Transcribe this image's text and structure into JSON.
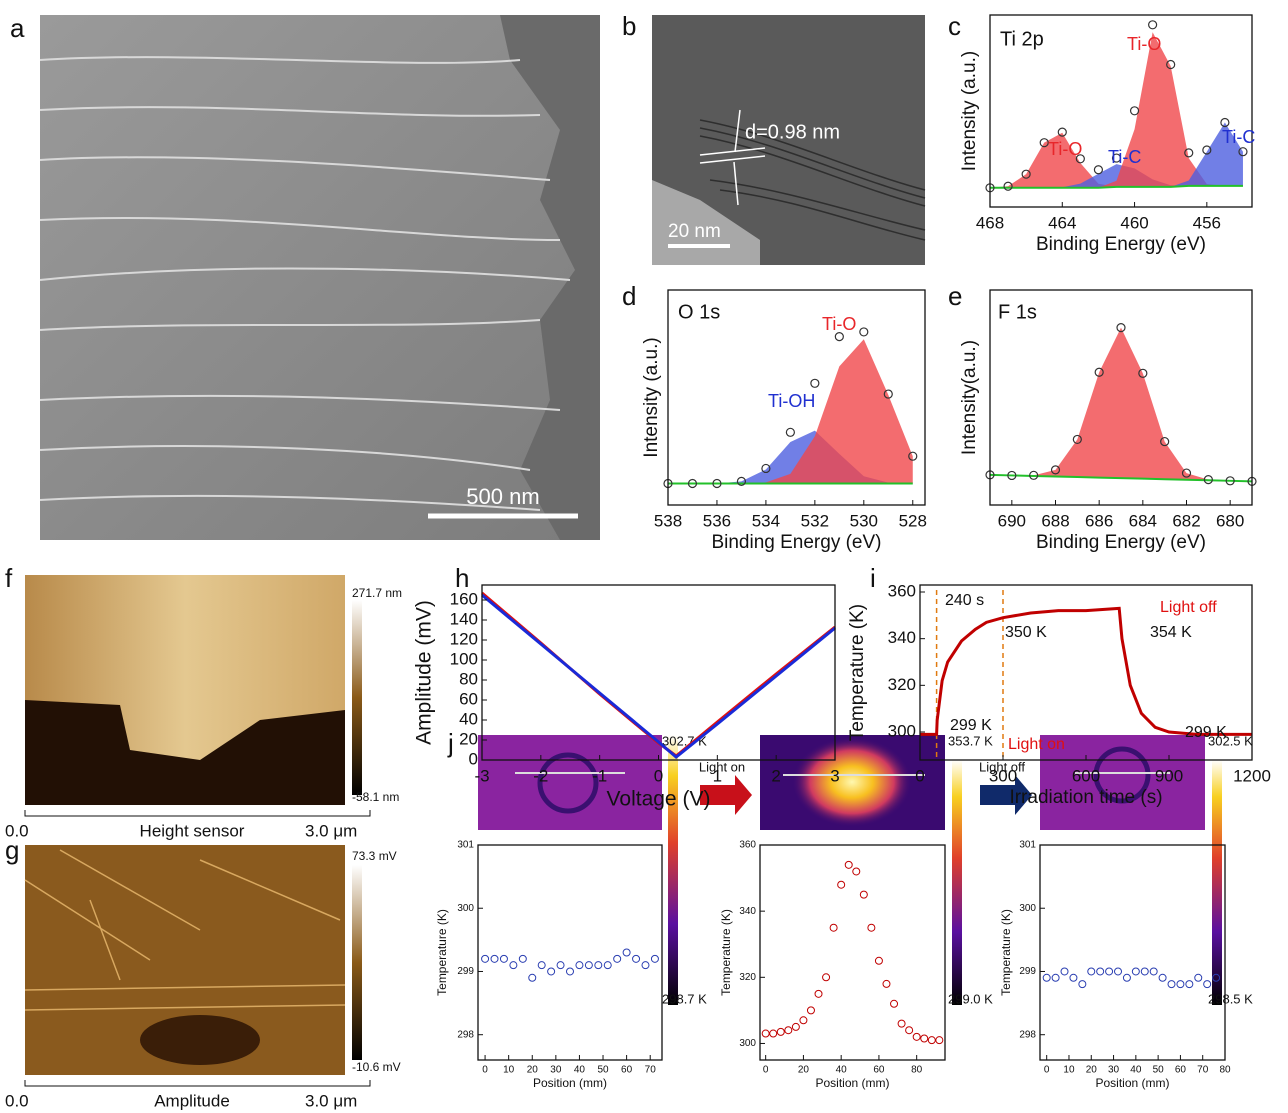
{
  "panel_labels": [
    "a",
    "b",
    "c",
    "d",
    "e",
    "f",
    "g",
    "h",
    "i",
    "j"
  ],
  "images": {
    "sem": {
      "scale_bar": "500 nm"
    },
    "tem": {
      "scale_bar": "20 nm",
      "spacing": "d=0.98 nm"
    },
    "afm_height": {
      "colorbar_max": "271.7 nm",
      "colorbar_min": "-58.1 nm",
      "axis_start": "0.0",
      "caption": "Height sensor",
      "axis_end": "3.0 μm"
    },
    "afm_amplitude": {
      "colorbar_max": "73.3 mV",
      "colorbar_min": "-10.6 mV",
      "axis_start": "0.0",
      "caption": "Amplitude",
      "axis_end": "3.0 μm"
    },
    "thermal": [
      {
        "colorbar_max": "302.7 K",
        "colorbar_min": "298.7 K"
      },
      {
        "colorbar_max": "353.7 K",
        "colorbar_min": "299.0 K"
      },
      {
        "colorbar_max": "302.5 K",
        "colorbar_min": "298.5 K"
      }
    ],
    "transitions": [
      "Light on",
      "Light off"
    ]
  },
  "chart_data": [
    {
      "type": "area",
      "title": "Ti 2p",
      "x_label": "Binding Energy (eV)",
      "y_label": "Intensity (a.u.)",
      "x": [
        468,
        467,
        466,
        465,
        464,
        463,
        462,
        461,
        460,
        459,
        458,
        457,
        456,
        455,
        454
      ],
      "values": [
        10,
        10.8,
        17.1,
        33.5,
        39,
        25.1,
        19.4,
        25.5,
        50.1,
        94.9,
        74.2,
        28.2,
        29.7,
        44,
        28.8
      ],
      "point_color": "#333333",
      "background": [
        10,
        10,
        10,
        10,
        10,
        10,
        10,
        10.5,
        10.5,
        10.5,
        10.5,
        11,
        11,
        11,
        11
      ],
      "background_color": "#22c02a",
      "peaks": [
        {
          "color": "#f0474b",
          "values": [
            10,
            10.8,
            17.1,
            33.5,
            38.7,
            22.9,
            12.1,
            10.5,
            10.5,
            10.5,
            10.5,
            11,
            11,
            11,
            11
          ]
        },
        {
          "color": "#4d5fe0",
          "values": [
            10,
            10,
            10,
            10,
            10.3,
            12.2,
            17.3,
            22.3,
            20.1,
            14.4,
            11.3,
            11,
            11,
            11,
            11
          ]
        },
        {
          "color": "#f0474b",
          "values": [
            10,
            10,
            10,
            10,
            10,
            10,
            10,
            13.7,
            40.5,
            91,
            73.4,
            25.4,
            11.9,
            11,
            11
          ]
        },
        {
          "color": "#4d5fe0",
          "values": [
            10,
            10,
            10,
            10,
            10,
            10,
            10,
            10.5,
            10.5,
            10.5,
            10.5,
            13.8,
            28.8,
            44,
            28.8
          ]
        }
      ],
      "annotations": [
        {
          "text": "Ti-O",
          "color": "#e8262a"
        },
        {
          "text": "Ti-C",
          "color": "#2030d0"
        },
        {
          "text": "Ti-O",
          "color": "#e8262a"
        },
        {
          "text": "Ti-C",
          "color": "#2030d0"
        }
      ],
      "xlim": [
        468,
        453.5
      ],
      "xticks": [
        468,
        464,
        460,
        456
      ],
      "ylim": [
        0,
        100
      ]
    },
    {
      "type": "area",
      "title": "O 1s",
      "x_label": "Binding Energy (eV)",
      "y_label": "Intensity (a.u.)",
      "x": [
        538,
        537,
        536,
        535,
        534,
        533,
        532,
        531,
        530,
        529,
        528
      ],
      "values": [
        10,
        10,
        10,
        11,
        17,
        33.8,
        56.6,
        78.3,
        80.5,
        51.6,
        22.7
      ],
      "point_color": "#333333",
      "background": [
        10,
        10,
        10,
        10,
        10,
        10,
        10,
        10,
        10,
        10,
        10
      ],
      "background_color": "#22c02a",
      "peaks": [
        {
          "color": "#4d5fe0",
          "values": [
            10,
            10,
            10,
            11,
            16.5,
            29.3,
            34.6,
            23.8,
            13.4,
            10.4,
            10
          ]
        },
        {
          "color": "#f0474b",
          "values": [
            10,
            10,
            10,
            10,
            10.5,
            14.5,
            32,
            64.5,
            77.1,
            51.2,
            22.7
          ]
        }
      ],
      "annotations": [
        {
          "text": "Ti-OH",
          "color": "#2030d0"
        },
        {
          "text": "Ti-O",
          "color": "#e8262a"
        }
      ],
      "xlim": [
        538,
        527.5
      ],
      "xticks": [
        538,
        536,
        534,
        532,
        530,
        528
      ],
      "ylim": [
        0,
        100
      ]
    },
    {
      "type": "area",
      "title": "F 1s",
      "x_label": "Binding Energy (eV)",
      "y_label": "Intensity(a.u.)",
      "x": [
        691,
        690,
        689,
        688,
        687,
        686,
        685,
        684,
        683,
        682,
        681,
        680,
        679
      ],
      "values": [
        14,
        13.75,
        13.8,
        16.35,
        30.5,
        61.75,
        82.5,
        61.25,
        29.5,
        14.85,
        11.8,
        11.25,
        11
      ],
      "point_color": "#333333",
      "background": [
        14,
        13.75,
        13.5,
        13.25,
        13,
        12.75,
        12.5,
        12.25,
        12,
        11.75,
        11.5,
        11.25,
        11
      ],
      "background_color": "#22c02a",
      "peaks": [
        {
          "color": "#f0474b",
          "values": [
            14,
            13.75,
            13.8,
            16.35,
            30.5,
            61.75,
            82.5,
            61.25,
            29.5,
            14.85,
            11.8,
            11.25,
            11
          ]
        }
      ],
      "xlim": [
        691,
        679
      ],
      "xticks": [
        690,
        688,
        686,
        684,
        682,
        680
      ],
      "ylim": [
        0,
        100
      ]
    },
    {
      "type": "line",
      "x_label": "Voltage (V)",
      "y_label": "Amplitude (mV)",
      "x": [
        -3,
        -2,
        -1,
        0,
        0.3,
        1,
        2,
        3
      ],
      "series": [
        {
          "color": "#e01010",
          "values": [
            167,
            117,
            66,
            17,
            4,
            38,
            86,
            133
          ]
        },
        {
          "color": "#1a2ad8",
          "values": [
            165,
            116,
            67,
            18,
            3,
            36,
            84,
            132
          ]
        }
      ],
      "xlim": [
        -3,
        3
      ],
      "xticks": [
        -3,
        -2,
        -1,
        0,
        1,
        2,
        3
      ],
      "ylim": [
        0,
        175
      ],
      "yticks": [
        0,
        20,
        40,
        60,
        80,
        100,
        120,
        140,
        160
      ]
    },
    {
      "type": "line",
      "x_label": "Irradiation time (s)",
      "y_label": "Temperature (K)",
      "x": [
        0,
        60,
        62,
        80,
        100,
        150,
        200,
        240,
        300,
        400,
        500,
        600,
        720,
        730,
        760,
        800,
        850,
        900,
        1000,
        1200
      ],
      "series": [
        {
          "color": "#c00000",
          "values": [
            299,
            299,
            305,
            322,
            330,
            339,
            344,
            347,
            349,
            351,
            352,
            352,
            353,
            340,
            320,
            308,
            302,
            300,
            299,
            299
          ]
        }
      ],
      "reference_lines_x": [
        60,
        300
      ],
      "reference_color": "#e07a10",
      "annotations": [
        {
          "text": "240 s",
          "color": "#111111"
        },
        {
          "text": "350 K",
          "color": "#111111"
        },
        {
          "text": "354 K",
          "color": "#111111"
        },
        {
          "text": "Light off",
          "color": "#e01010"
        },
        {
          "text": "299 K",
          "color": "#111111"
        },
        {
          "text": "Light on",
          "color": "#e01010"
        },
        {
          "text": "299 K",
          "color": "#111111"
        }
      ],
      "xlim": [
        0,
        1200
      ],
      "xticks": [
        0,
        300,
        600,
        900,
        1200
      ],
      "ylim": [
        288,
        363
      ],
      "yticks": [
        300,
        320,
        340,
        360
      ]
    },
    {
      "type": "scatter",
      "x_label": "Position (mm)",
      "y_label": "Temperature (K)",
      "x": [
        0,
        4,
        8,
        12,
        16,
        20,
        24,
        28,
        32,
        36,
        40,
        44,
        48,
        52,
        56,
        60,
        64,
        68,
        72
      ],
      "values": [
        299.2,
        299.2,
        299.2,
        299.1,
        299.2,
        298.9,
        299.1,
        299.0,
        299.1,
        299.0,
        299.1,
        299.1,
        299.1,
        299.1,
        299.2,
        299.3,
        299.2,
        299.1,
        299.2
      ],
      "color": "#2a3eb1",
      "xlim": [
        -3,
        75
      ],
      "xticks": [
        0,
        10,
        20,
        30,
        40,
        50,
        60,
        70
      ],
      "ylim": [
        297.6,
        301
      ],
      "yticks": [
        298,
        299,
        300,
        301
      ]
    },
    {
      "type": "scatter",
      "x_label": "Position (mm)",
      "y_label": "Temperature (K)",
      "x": [
        0,
        4,
        8,
        12,
        16,
        20,
        24,
        28,
        32,
        36,
        40,
        44,
        48,
        52,
        56,
        60,
        64,
        68,
        72,
        76,
        80,
        84,
        88,
        92
      ],
      "values": [
        303,
        303,
        303.5,
        304,
        305,
        307,
        310,
        315,
        320,
        335,
        348,
        354,
        352,
        345,
        335,
        325,
        318,
        312,
        306,
        304,
        302,
        301.5,
        301,
        301
      ],
      "color": "#c00000",
      "xlim": [
        -3,
        95
      ],
      "xticks": [
        0,
        20,
        40,
        60,
        80
      ],
      "ylim": [
        295,
        360
      ],
      "yticks": [
        300,
        320,
        340,
        360
      ]
    },
    {
      "type": "scatter",
      "x_label": "Position (mm)",
      "y_label": "Temperature (K)",
      "x": [
        0,
        4,
        8,
        12,
        16,
        20,
        24,
        28,
        32,
        36,
        40,
        44,
        48,
        52,
        56,
        60,
        64,
        68,
        72,
        76
      ],
      "values": [
        298.9,
        298.9,
        299.0,
        298.9,
        298.8,
        299.0,
        299.0,
        299.0,
        299.0,
        298.9,
        299.0,
        299.0,
        299.0,
        298.9,
        298.8,
        298.8,
        298.8,
        298.9,
        298.8,
        298.9
      ],
      "color": "#2a3eb1",
      "xlim": [
        -3,
        80
      ],
      "xticks": [
        0,
        10,
        20,
        30,
        40,
        50,
        60,
        70,
        80
      ],
      "ylim": [
        297.6,
        301
      ],
      "yticks": [
        298,
        299,
        300,
        301
      ]
    }
  ]
}
